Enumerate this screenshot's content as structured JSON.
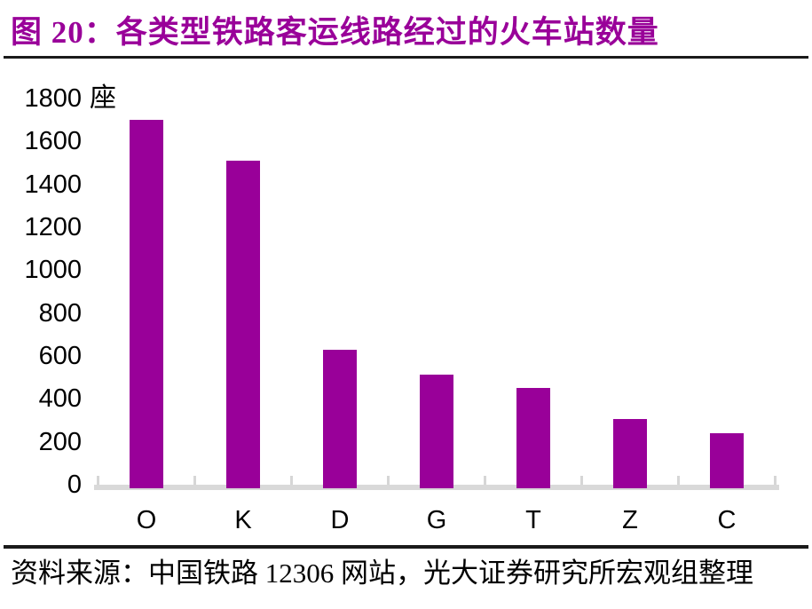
{
  "header": {
    "figure_label": "图 20：",
    "title": "各类型铁路客运线路经过的火车站数量"
  },
  "footer": {
    "source": "资料来源：中国铁路 12306 网站，光大证券研究所宏观组整理"
  },
  "colors": {
    "accent": "#990099",
    "bar": "#990099",
    "title_text": "#990099",
    "axis_line": "#d9d9d9",
    "divider": "#1a1a1a",
    "text": "#000000"
  },
  "chart_data": {
    "type": "bar",
    "title": "各类型铁路客运线路经过的火车站数量",
    "unit": "座",
    "categories": [
      "O",
      "K",
      "D",
      "G",
      "T",
      "Z",
      "C"
    ],
    "values": [
      1700,
      1510,
      630,
      515,
      450,
      305,
      240
    ],
    "xlabel": "",
    "ylabel": "座",
    "ylim": [
      0,
      1800
    ],
    "yticks": [
      1800,
      1600,
      1400,
      1200,
      1000,
      800,
      600,
      400,
      200,
      0
    ],
    "ytick_step": 200,
    "grid": false,
    "legend": "none",
    "bar_color": "#990099"
  }
}
